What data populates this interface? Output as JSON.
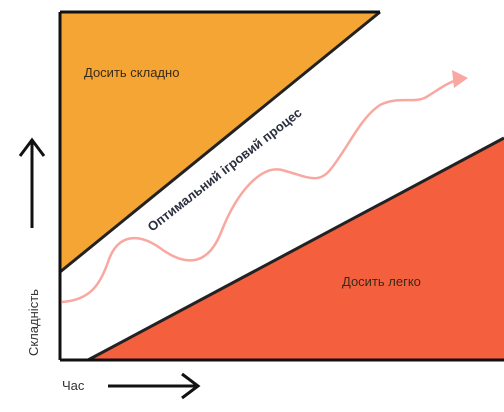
{
  "regions": {
    "too_hard": {
      "label": "Досить складно",
      "color": "#f4a533"
    },
    "flow": {
      "label": "Оптимальний ігровий процес",
      "color": "#ffffff"
    },
    "too_easy": {
      "label": "Досить легко",
      "color": "#f4603e"
    }
  },
  "axes": {
    "y_label": "Складність",
    "x_label": "Час",
    "axis_color": "#111111"
  },
  "flow_path": {
    "color": "#f8a8a0"
  }
}
